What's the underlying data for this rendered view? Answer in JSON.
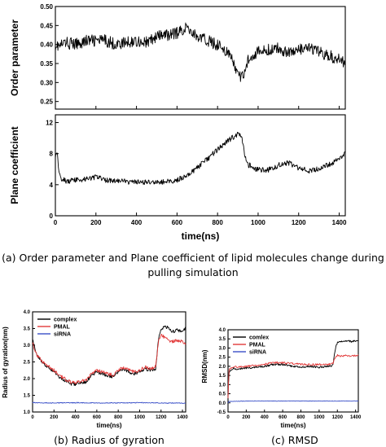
{
  "captions": {
    "a_line1": "(a) Order parameter and Plane coefficient of lipid molecules change during",
    "a_line2": "pulling simulation",
    "b": "(b) Radius of gyration",
    "c": "(c) RMSD"
  },
  "chart_data": [
    {
      "id": "order",
      "type": "line",
      "title": "",
      "xlabel": "",
      "ylabel": "Order parameter",
      "xlim": [
        0,
        1430
      ],
      "ylim": [
        0.23,
        0.5
      ],
      "yticks": [
        0.25,
        0.3,
        0.35,
        0.4,
        0.45,
        0.5
      ],
      "ytick_labels": [
        "0.25",
        "0.30",
        "0.35",
        "0.40",
        "0.45",
        "0.50"
      ],
      "series": [
        {
          "color": "#000000",
          "x": [
            0,
            20,
            50,
            100,
            150,
            200,
            250,
            300,
            350,
            400,
            450,
            500,
            550,
            600,
            630,
            650,
            680,
            700,
            750,
            800,
            830,
            860,
            880,
            900,
            920,
            940,
            960,
            980,
            1000,
            1050,
            1100,
            1150,
            1200,
            1250,
            1300,
            1350,
            1400,
            1430
          ],
          "values": [
            0.4,
            0.395,
            0.405,
            0.4,
            0.41,
            0.41,
            0.41,
            0.4,
            0.405,
            0.41,
            0.405,
            0.42,
            0.425,
            0.43,
            0.44,
            0.445,
            0.43,
            0.42,
            0.41,
            0.4,
            0.39,
            0.37,
            0.35,
            0.32,
            0.31,
            0.345,
            0.37,
            0.375,
            0.38,
            0.385,
            0.39,
            0.38,
            0.385,
            0.39,
            0.38,
            0.37,
            0.36,
            0.355
          ]
        }
      ]
    },
    {
      "id": "plane",
      "type": "line",
      "title": "",
      "xlabel": "time(ns)",
      "ylabel": "Plane coefficient",
      "xlim": [
        0,
        1430
      ],
      "ylim": [
        0,
        13
      ],
      "xticks": [
        0,
        200,
        400,
        600,
        800,
        1000,
        1200,
        1400
      ],
      "xtick_labels": [
        "0",
        "200",
        "400",
        "600",
        "800",
        "1000",
        "1200",
        "1400"
      ],
      "yticks": [
        0,
        4,
        8,
        12
      ],
      "ytick_labels": [
        "0",
        "4",
        "8",
        "12"
      ],
      "series": [
        {
          "color": "#000000",
          "x": [
            0,
            8,
            15,
            30,
            60,
            100,
            150,
            200,
            250,
            300,
            350,
            400,
            450,
            500,
            550,
            600,
            650,
            700,
            750,
            800,
            850,
            880,
            900,
            920,
            935,
            950,
            970,
            1000,
            1050,
            1100,
            1150,
            1200,
            1250,
            1300,
            1350,
            1400,
            1430
          ],
          "values": [
            7.8,
            8.4,
            6.2,
            4.8,
            4.4,
            4.6,
            4.7,
            5.0,
            4.6,
            4.5,
            4.4,
            4.3,
            4.3,
            4.3,
            4.4,
            4.6,
            5.2,
            6.2,
            7.3,
            8.5,
            9.6,
            10.2,
            10.5,
            10.2,
            7.5,
            6.6,
            6.3,
            5.9,
            5.9,
            6.5,
            6.8,
            6.1,
            5.8,
            6.1,
            6.6,
            7.3,
            8.0
          ]
        }
      ]
    },
    {
      "id": "rg",
      "type": "line",
      "title": "",
      "xlabel": "time(ns)",
      "ylabel": "Radius of gyration(nm)",
      "xlim": [
        0,
        1430
      ],
      "ylim": [
        1.0,
        4.0
      ],
      "xticks": [
        0,
        200,
        400,
        600,
        800,
        1000,
        1200,
        1400
      ],
      "xtick_labels": [
        "0",
        "200",
        "400",
        "600",
        "800",
        "1000",
        "1200",
        "1400"
      ],
      "yticks": [
        1.0,
        1.5,
        2.0,
        2.5,
        3.0,
        3.5,
        4.0
      ],
      "ytick_labels": [
        "1.0",
        "1.5",
        "2.0",
        "2.5",
        "3.0",
        "3.5",
        "4.0"
      ],
      "legend_position": "top-left",
      "series": [
        {
          "name": "complex",
          "color": "#000000",
          "x": [
            0,
            20,
            40,
            80,
            120,
            160,
            200,
            250,
            300,
            350,
            400,
            450,
            500,
            550,
            600,
            650,
            700,
            750,
            800,
            850,
            900,
            950,
            1000,
            1050,
            1100,
            1150,
            1180,
            1200,
            1250,
            1300,
            1350,
            1400,
            1430
          ],
          "values": [
            3.2,
            2.9,
            2.7,
            2.55,
            2.4,
            2.3,
            2.2,
            2.05,
            1.95,
            1.85,
            1.82,
            1.88,
            1.9,
            2.1,
            2.2,
            2.15,
            2.1,
            2.05,
            2.2,
            2.3,
            2.2,
            2.15,
            2.2,
            2.3,
            2.25,
            2.3,
            3.3,
            3.5,
            3.55,
            3.4,
            3.45,
            3.4,
            3.5
          ]
        },
        {
          "name": "PMAL",
          "color": "#e23a3a",
          "x": [
            0,
            20,
            40,
            80,
            120,
            160,
            200,
            250,
            300,
            350,
            400,
            450,
            500,
            550,
            600,
            650,
            700,
            750,
            800,
            850,
            900,
            950,
            1000,
            1050,
            1100,
            1150,
            1180,
            1200,
            1250,
            1300,
            1350,
            1400,
            1430
          ],
          "values": [
            3.1,
            2.85,
            2.7,
            2.55,
            2.45,
            2.35,
            2.25,
            2.1,
            2.0,
            1.9,
            1.88,
            1.92,
            1.95,
            2.15,
            2.25,
            2.2,
            2.15,
            2.1,
            2.25,
            2.35,
            2.25,
            2.2,
            2.25,
            2.35,
            2.3,
            2.35,
            3.2,
            3.3,
            3.2,
            3.1,
            3.15,
            3.1,
            3.0
          ]
        },
        {
          "name": "siRNA",
          "color": "#3a50c8",
          "x": [
            0,
            200,
            400,
            600,
            800,
            1000,
            1200,
            1430
          ],
          "values": [
            1.28,
            1.27,
            1.28,
            1.27,
            1.27,
            1.28,
            1.27,
            1.27
          ]
        }
      ]
    },
    {
      "id": "rmsd",
      "type": "line",
      "title": "",
      "xlabel": "time(ns)",
      "ylabel": "RMSD(nm)",
      "xlim": [
        0,
        1430
      ],
      "ylim": [
        -0.5,
        4.0
      ],
      "xticks": [
        0,
        200,
        400,
        600,
        800,
        1000,
        1200,
        1400
      ],
      "xtick_labels": [
        "0",
        "200",
        "400",
        "600",
        "800",
        "1000",
        "1200",
        "1400"
      ],
      "yticks": [
        -0.5,
        0.0,
        0.5,
        1.0,
        1.5,
        2.0,
        2.5,
        3.0,
        3.5,
        4.0
      ],
      "ytick_labels": [
        "-0.5",
        "0.0",
        "0.5",
        "1.0",
        "1.5",
        "2.0",
        "2.5",
        "3.0",
        "3.5",
        "4.0"
      ],
      "legend_position": "top-left",
      "series": [
        {
          "name": "comlex",
          "color": "#000000",
          "x": [
            0,
            10,
            30,
            60,
            100,
            200,
            300,
            400,
            500,
            600,
            700,
            800,
            900,
            1000,
            1100,
            1150,
            1180,
            1200,
            1250,
            1300,
            1350,
            1400,
            1430
          ],
          "values": [
            0.3,
            1.6,
            1.8,
            1.9,
            1.85,
            1.9,
            1.95,
            2.0,
            2.1,
            2.1,
            2.0,
            1.95,
            2.0,
            1.95,
            2.0,
            2.05,
            3.0,
            3.3,
            3.35,
            3.4,
            3.35,
            3.4,
            3.4
          ]
        },
        {
          "name": "PMAL",
          "color": "#e23a3a",
          "x": [
            0,
            10,
            30,
            60,
            100,
            200,
            300,
            400,
            500,
            600,
            700,
            800,
            900,
            1000,
            1100,
            1150,
            1180,
            1200,
            1250,
            1300,
            1350,
            1400,
            1430
          ],
          "values": [
            0.3,
            1.8,
            1.9,
            2.0,
            1.95,
            2.0,
            2.05,
            2.1,
            2.2,
            2.2,
            2.15,
            2.1,
            2.1,
            2.1,
            2.1,
            2.15,
            2.5,
            2.6,
            2.55,
            2.6,
            2.55,
            2.6,
            2.6
          ]
        },
        {
          "name": "siRNA",
          "color": "#3a50c8",
          "x": [
            0,
            10,
            200,
            400,
            600,
            800,
            1000,
            1200,
            1430
          ],
          "values": [
            0.0,
            0.08,
            0.1,
            0.1,
            0.1,
            0.1,
            0.1,
            0.1,
            0.1
          ]
        }
      ]
    }
  ]
}
